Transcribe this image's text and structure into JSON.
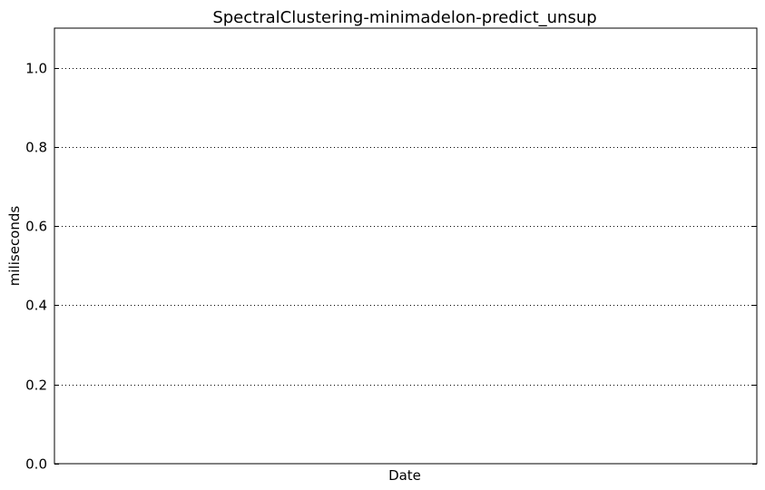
{
  "chart_data": {
    "type": "line",
    "title": "SpectralClustering-minimadelon-predict_unsup",
    "xlabel": "Date",
    "ylabel": "miliseconds",
    "ylim": [
      0.0,
      1.1
    ],
    "yticks": [
      0.0,
      0.2,
      0.4,
      0.6,
      0.8,
      1.0
    ],
    "ytick_labels": [
      "0.0",
      "0.2",
      "0.4",
      "0.6",
      "0.8",
      "1.0"
    ],
    "x": [],
    "series": [],
    "grid": "horizontal dotted",
    "legend": "none"
  }
}
